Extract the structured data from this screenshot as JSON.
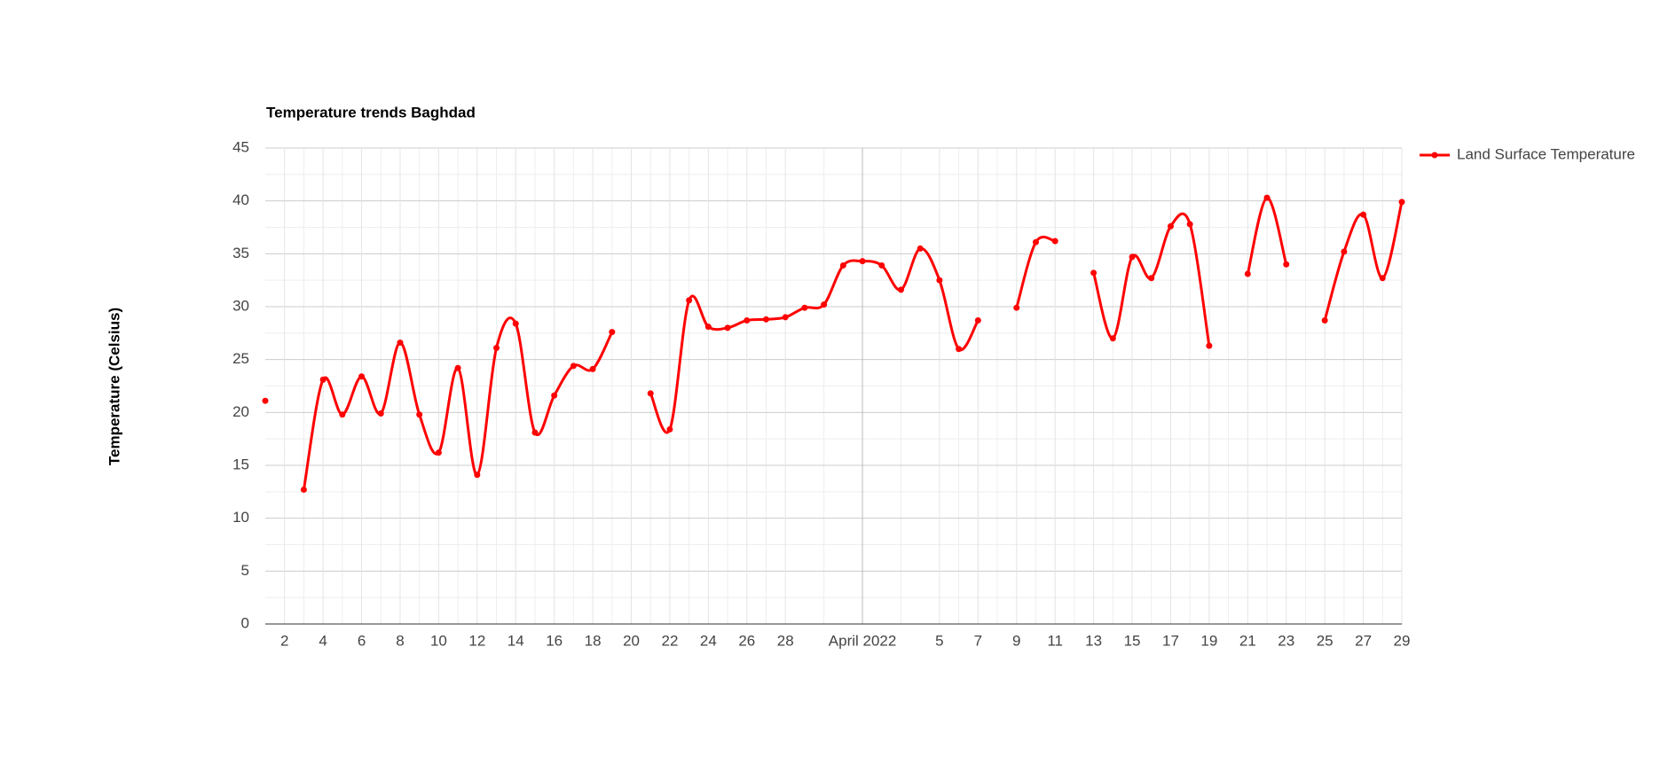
{
  "chart_data": {
    "type": "line",
    "title": "Temperature trends Baghdad",
    "y_label": "Temperature (Celsius)",
    "x": [
      "2022-03-01",
      "2022-03-02",
      "2022-03-03",
      "2022-03-04",
      "2022-03-05",
      "2022-03-06",
      "2022-03-07",
      "2022-03-08",
      "2022-03-09",
      "2022-03-10",
      "2022-03-11",
      "2022-03-12",
      "2022-03-13",
      "2022-03-14",
      "2022-03-15",
      "2022-03-16",
      "2022-03-17",
      "2022-03-18",
      "2022-03-19",
      "2022-03-20",
      "2022-03-21",
      "2022-03-22",
      "2022-03-23",
      "2022-03-24",
      "2022-03-25",
      "2022-03-26",
      "2022-03-27",
      "2022-03-28",
      "2022-03-29",
      "2022-03-30",
      "2022-03-31",
      "2022-04-01",
      "2022-04-02",
      "2022-04-03",
      "2022-04-04",
      "2022-04-05",
      "2022-04-06",
      "2022-04-07",
      "2022-04-08",
      "2022-04-09",
      "2022-04-10",
      "2022-04-11",
      "2022-04-12",
      "2022-04-13",
      "2022-04-14",
      "2022-04-15",
      "2022-04-16",
      "2022-04-17",
      "2022-04-18",
      "2022-04-19",
      "2022-04-20",
      "2022-04-21",
      "2022-04-22",
      "2022-04-23",
      "2022-04-24",
      "2022-04-25",
      "2022-04-26",
      "2022-04-27",
      "2022-04-28",
      "2022-04-29"
    ],
    "series": [
      {
        "name": "Land Surface Temperature",
        "color": "#ff0000",
        "values": [
          21.1,
          null,
          12.7,
          23.1,
          19.8,
          23.4,
          19.9,
          26.6,
          19.8,
          16.2,
          24.2,
          14.1,
          26.1,
          28.4,
          18.1,
          21.6,
          24.4,
          24.1,
          27.6,
          null,
          21.8,
          18.4,
          30.6,
          28.1,
          28.0,
          28.7,
          28.8,
          29.0,
          29.9,
          30.2,
          33.9,
          34.3,
          33.9,
          31.6,
          35.5,
          32.5,
          26.0,
          28.7,
          null,
          29.9,
          36.1,
          36.2,
          null,
          33.2,
          27.0,
          34.7,
          32.7,
          37.6,
          37.8,
          26.3,
          null,
          33.1,
          40.3,
          34.0,
          null,
          28.7,
          35.2,
          38.7,
          32.7,
          39.9
        ]
      }
    ],
    "xlim": [
      "2022-03-01",
      "2022-04-29"
    ],
    "xticks": [
      {
        "value": "2022-03-02",
        "label": "2"
      },
      {
        "value": "2022-03-04",
        "label": "4"
      },
      {
        "value": "2022-03-06",
        "label": "6"
      },
      {
        "value": "2022-03-08",
        "label": "8"
      },
      {
        "value": "2022-03-10",
        "label": "10"
      },
      {
        "value": "2022-03-12",
        "label": "12"
      },
      {
        "value": "2022-03-14",
        "label": "14"
      },
      {
        "value": "2022-03-16",
        "label": "16"
      },
      {
        "value": "2022-03-18",
        "label": "18"
      },
      {
        "value": "2022-03-20",
        "label": "20"
      },
      {
        "value": "2022-03-22",
        "label": "22"
      },
      {
        "value": "2022-03-24",
        "label": "24"
      },
      {
        "value": "2022-03-26",
        "label": "26"
      },
      {
        "value": "2022-03-28",
        "label": "28"
      },
      {
        "value": "2022-04-01",
        "label": "April 2022"
      },
      {
        "value": "2022-04-05",
        "label": "5"
      },
      {
        "value": "2022-04-07",
        "label": "7"
      },
      {
        "value": "2022-04-09",
        "label": "9"
      },
      {
        "value": "2022-04-11",
        "label": "11"
      },
      {
        "value": "2022-04-13",
        "label": "13"
      },
      {
        "value": "2022-04-15",
        "label": "15"
      },
      {
        "value": "2022-04-17",
        "label": "17"
      },
      {
        "value": "2022-04-19",
        "label": "19"
      },
      {
        "value": "2022-04-21",
        "label": "21"
      },
      {
        "value": "2022-04-23",
        "label": "23"
      },
      {
        "value": "2022-04-25",
        "label": "25"
      },
      {
        "value": "2022-04-27",
        "label": "27"
      },
      {
        "value": "2022-04-29",
        "label": "29"
      }
    ],
    "ylim": [
      0,
      45
    ],
    "yticks": [
      0,
      5,
      10,
      15,
      20,
      25,
      30,
      35,
      40,
      45
    ],
    "grid": true,
    "legend": "right",
    "curve": "smooth"
  }
}
